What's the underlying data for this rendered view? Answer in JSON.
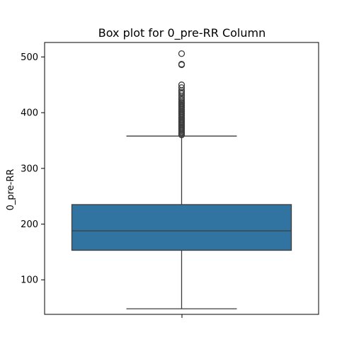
{
  "chart_data": {
    "type": "box",
    "title": "Box plot for 0_pre-RR Column",
    "xlabel": "",
    "ylabel": "0_pre-RR",
    "ylim": [
      38,
      526
    ],
    "yticks": [
      100,
      200,
      300,
      400,
      500
    ],
    "grid": false,
    "box_color": "#3274a1",
    "series": [
      {
        "whisker_low": 48,
        "q1": 153,
        "median": 188,
        "q3": 235,
        "whisker_high": 358,
        "outliers": [
          360,
          362,
          364,
          366,
          368,
          370,
          372,
          374,
          376,
          378,
          380,
          382,
          384,
          386,
          388,
          390,
          392,
          394,
          396,
          398,
          400,
          402,
          404,
          406,
          408,
          410,
          412,
          414,
          416,
          418,
          420,
          423,
          426,
          430,
          434,
          437,
          440,
          445,
          450,
          486,
          487,
          506
        ]
      }
    ]
  }
}
